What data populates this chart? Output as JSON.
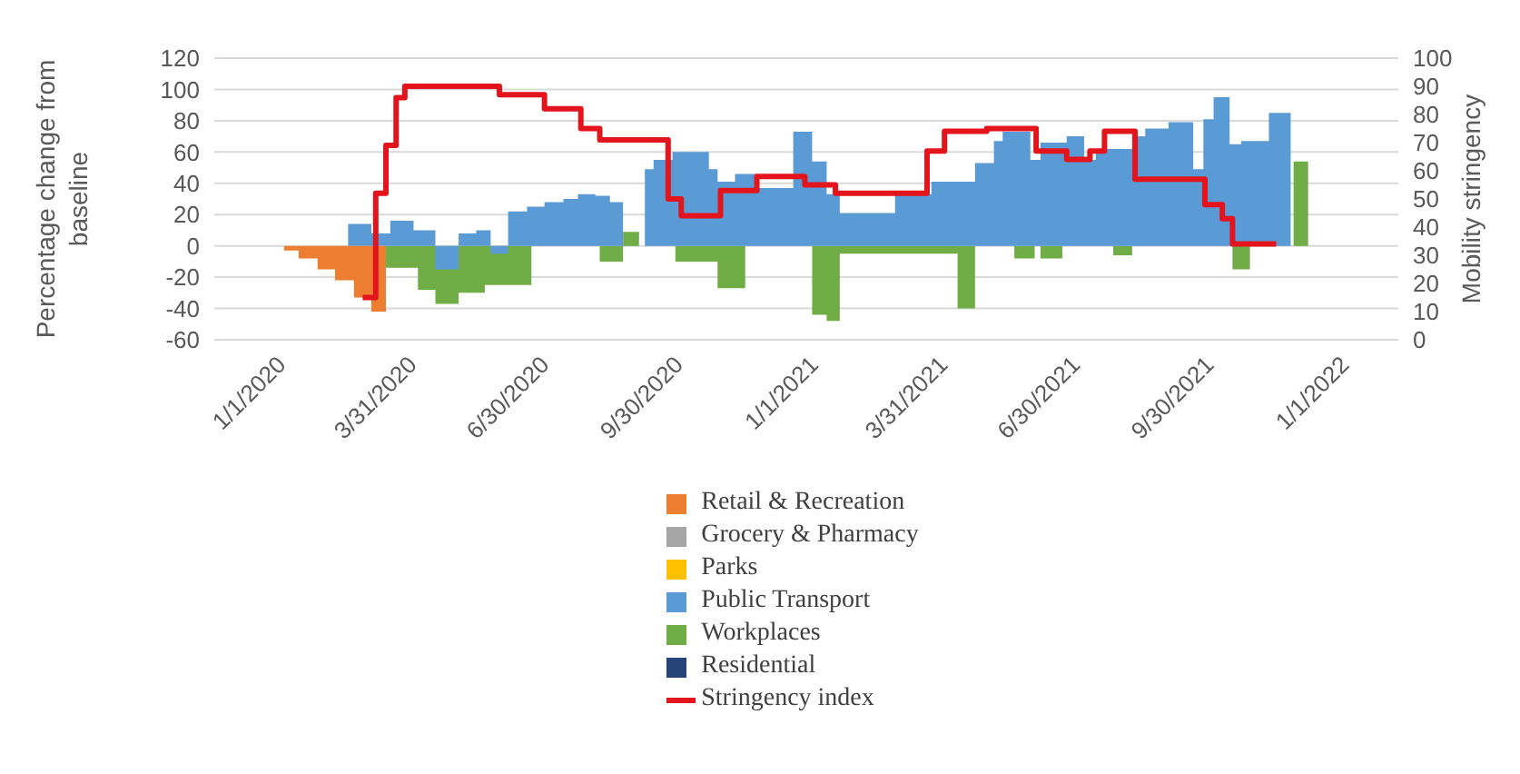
{
  "chart_data": {
    "type": "area",
    "xlim": [
      "2019-11-20",
      "2022-02-11"
    ],
    "xticks": [
      {
        "value": "2020-01-01",
        "label": "1/1/2020"
      },
      {
        "value": "2020-03-31",
        "label": "3/31/2020"
      },
      {
        "value": "2020-06-30",
        "label": "6/30/2020"
      },
      {
        "value": "2020-09-30",
        "label": "9/30/2020"
      },
      {
        "value": "2021-01-01",
        "label": "1/1/2021"
      },
      {
        "value": "2021-03-31",
        "label": "3/31/2021"
      },
      {
        "value": "2021-06-30",
        "label": "6/30/2021"
      },
      {
        "value": "2021-09-30",
        "label": "9/30/2021"
      },
      {
        "value": "2022-01-01",
        "label": "1/1/2022"
      }
    ],
    "ylim": [
      -60,
      120
    ],
    "yticks": [
      -60,
      -40,
      -20,
      0,
      20,
      40,
      60,
      80,
      100,
      120
    ],
    "y2lim": [
      0,
      100
    ],
    "y2ticks": [
      0,
      10,
      20,
      30,
      40,
      50,
      60,
      70,
      80,
      90,
      100
    ],
    "ylabel": "Percentage change from baseline",
    "y2label": "Mobility stringency",
    "grid": "y",
    "legend": "bottom",
    "series": [
      {
        "name": "Retail & Recreation",
        "color": "#ed7d31",
        "x": [
          "2020-01-07",
          "2020-01-17",
          "2020-01-30",
          "2020-02-11",
          "2020-02-24",
          "2020-03-07",
          "2020-03-17"
        ],
        "values": [
          -3,
          -8,
          -15,
          -22,
          -33,
          -42,
          -42
        ]
      },
      {
        "name": "Grocery & Pharmacy",
        "color": "#a5a5a5"
      },
      {
        "name": "Parks",
        "color": "#ffc000"
      },
      {
        "name": "Public Transport",
        "color": "#5b9bd5",
        "x": [
          "2020-02-20",
          "2020-03-07",
          "2020-03-20",
          "2020-04-05",
          "2020-04-20",
          "2020-05-06",
          "2020-05-18",
          "2020-05-28",
          "2020-06-09",
          "2020-06-22",
          "2020-07-04",
          "2020-07-17",
          "2020-07-27",
          "2020-08-08",
          "2020-08-18",
          "2020-08-27",
          "2020-08-28",
          "2020-09-11",
          "2020-09-17",
          "2020-09-30",
          "2020-10-25",
          "2020-10-31",
          "2020-11-12",
          "2020-11-27",
          "2020-12-22",
          "2021-01-04",
          "2021-01-14",
          "2021-01-23",
          "2021-03-02",
          "2021-03-27",
          "2021-04-26",
          "2021-05-09",
          "2021-05-15",
          "2021-06-03",
          "2021-06-10",
          "2021-06-28",
          "2021-07-10",
          "2021-07-18",
          "2021-08-12",
          "2021-08-21",
          "2021-09-06",
          "2021-09-23",
          "2021-09-30",
          "2021-10-07",
          "2021-10-18",
          "2021-10-26",
          "2021-11-14",
          "2021-11-29"
        ],
        "values": [
          14,
          8,
          16,
          10,
          -15,
          8,
          10,
          -5,
          22,
          25,
          28,
          30,
          33,
          32,
          28,
          28,
          null,
          49,
          55,
          60,
          49,
          41,
          46,
          37,
          73,
          54,
          33,
          21,
          33,
          41,
          53,
          67,
          73,
          55,
          66,
          70,
          55,
          62,
          70,
          75,
          79,
          49,
          81,
          95,
          65,
          67,
          85,
          85
        ]
      },
      {
        "name": "Workplaces",
        "color": "#70ad47",
        "x": [
          "2020-03-17",
          "2020-04-08",
          "2020-04-20",
          "2020-05-06",
          "2020-05-24",
          "2020-06-09",
          "2020-06-25",
          "2020-06-26",
          "2020-08-11",
          "2020-08-27",
          "2020-09-07",
          "2020-09-08",
          "2020-10-02",
          "2020-10-31",
          "2020-11-19",
          "2020-11-20",
          "2021-01-04",
          "2021-01-14",
          "2021-01-23",
          "2021-04-14",
          "2021-04-26",
          "2021-04-27",
          "2021-05-23",
          "2021-06-06",
          "2021-06-07",
          "2021-06-10",
          "2021-06-25",
          "2021-06-26",
          "2021-07-30",
          "2021-08-12",
          "2021-08-13",
          "2021-10-20",
          "2021-11-01",
          "2021-11-02",
          "2021-12-01",
          "2021-12-11"
        ],
        "values": [
          -14,
          -28,
          -37,
          -30,
          -25,
          -25,
          -25,
          null,
          -10,
          9,
          9,
          null,
          -10,
          -27,
          -27,
          null,
          -44,
          -48,
          -5,
          -40,
          -40,
          null,
          -8,
          -8,
          null,
          -8,
          -8,
          null,
          -6,
          -6,
          null,
          -15,
          -15,
          null,
          54,
          54
        ]
      },
      {
        "name": "Residential",
        "color": "#264478"
      },
      {
        "name": "Stringency index",
        "type": "step",
        "axis": "y2",
        "color": "#e3141b",
        "x": [
          "2020-03-01",
          "2020-03-10",
          "2020-03-17",
          "2020-03-24",
          "2020-03-30",
          "2020-06-03",
          "2020-07-04",
          "2020-07-29",
          "2020-08-11",
          "2020-09-27",
          "2020-10-06",
          "2020-11-02",
          "2020-11-27",
          "2020-12-30",
          "2021-01-20",
          "2021-03-24",
          "2021-04-05",
          "2021-05-04",
          "2021-06-07",
          "2021-06-28",
          "2021-07-14",
          "2021-07-24",
          "2021-08-14",
          "2021-10-01",
          "2021-10-13",
          "2021-10-20",
          "2021-11-19"
        ],
        "values": [
          15,
          52,
          69,
          86,
          90,
          87,
          82,
          75,
          71,
          50,
          44,
          53,
          58,
          55,
          52,
          67,
          74,
          75,
          67,
          64,
          67,
          74,
          57,
          48,
          43,
          34,
          34
        ]
      }
    ]
  }
}
